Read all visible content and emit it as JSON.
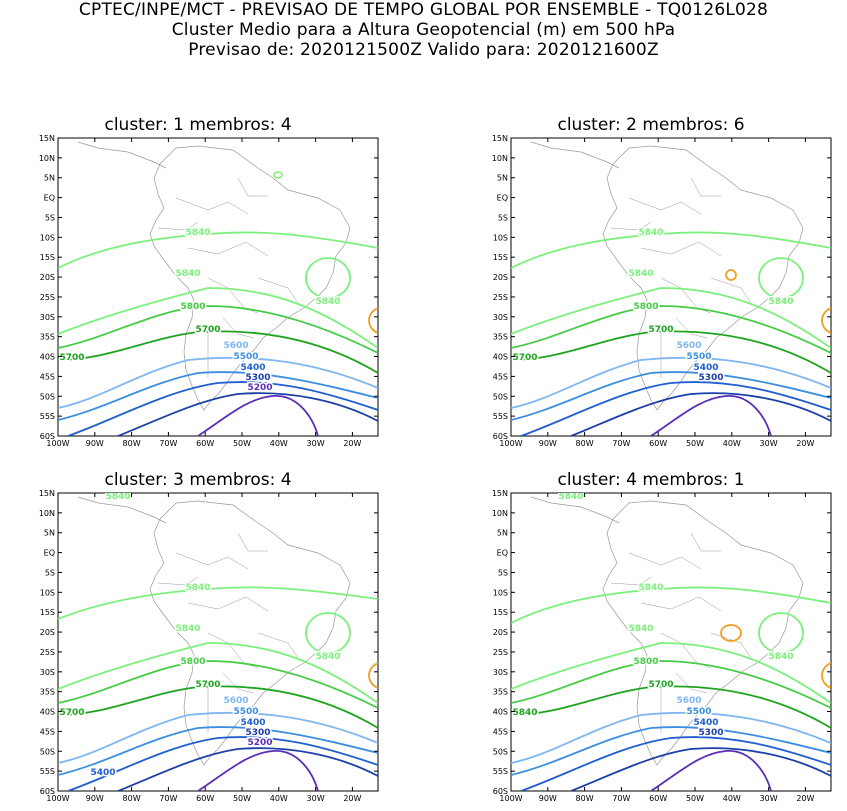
{
  "header": {
    "line1": "CPTEC/INPE/MCT - PREVISAO DE TEMPO GLOBAL POR ENSEMBLE - TQ0126L028",
    "line2": "Cluster Medio para a Altura Geopotencial (m) em 500 hPa",
    "line3": "Previsao de: 2020121500Z    Valido para: 2020121600Z"
  },
  "axes": {
    "lat_labels": [
      "15N",
      "10N",
      "5N",
      "EQ",
      "5S",
      "10S",
      "15S",
      "20S",
      "25S",
      "30S",
      "35S",
      "40S",
      "45S",
      "50S",
      "55S",
      "60S"
    ],
    "lon_labels": [
      "100W",
      "90W",
      "80W",
      "70W",
      "60W",
      "50W",
      "40W",
      "30W",
      "20W"
    ]
  },
  "colors": {
    "c5840": "#7CF07C",
    "c5800": "#44CC44",
    "c5700": "#1EA41E",
    "c5600": "#7FB7F0",
    "c5500": "#3C8FE0",
    "c5400": "#1F5FD0",
    "c5300": "#1C3FA8",
    "c5200": "#5A2EB8",
    "c5900": "#F0A020",
    "coast": "#999999"
  },
  "panels": [
    {
      "title": "cluster: 1   membros: 4",
      "labels": {
        "a": "5840",
        "b": "5840",
        "c": "5840",
        "d": "5800",
        "e": "5700",
        "f": "5700",
        "g": "5600",
        "h": "5500",
        "i": "5400",
        "j": "5300",
        "k": "5200"
      }
    },
    {
      "title": "cluster: 2   membros: 6",
      "labels": {
        "a": "5840",
        "b": "5840",
        "c": "5840",
        "d": "5800",
        "e": "5700",
        "f": "5700",
        "g": "5600",
        "h": "5500",
        "i": "5400",
        "j": "5300"
      }
    },
    {
      "title": "cluster: 3   membros: 4",
      "labels": {
        "a": "5840",
        "b": "5840",
        "c": "5840",
        "d": "5800",
        "e": "5700",
        "f": "5700",
        "g": "5600",
        "h": "5500",
        "i": "5400",
        "j": "5300",
        "k": "5200",
        "l": "5400",
        "m": "5840"
      }
    },
    {
      "title": "cluster: 4   membros: 1",
      "labels": {
        "a": "5840",
        "b": "5840",
        "c": "5840",
        "d": "5800",
        "e": "5700",
        "f": "5840",
        "g": "5600",
        "h": "5500",
        "i": "5400",
        "j": "5300",
        "m": "5840"
      }
    }
  ]
}
